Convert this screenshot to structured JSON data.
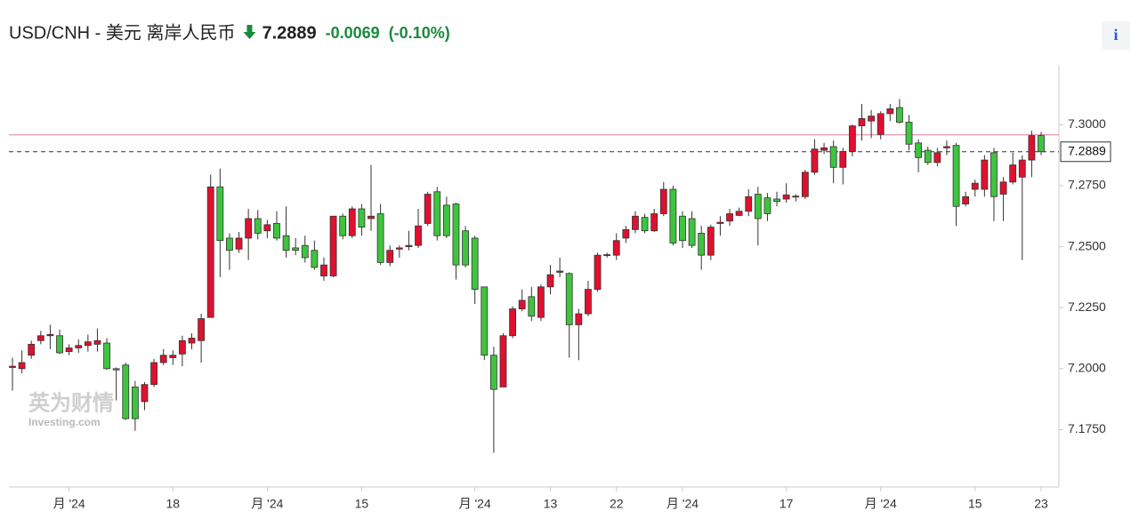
{
  "chart_data": {
    "type": "candlestick",
    "title": "USD/CNH - 美元 离岸人民币",
    "last_price": 7.2889,
    "change": -0.0069,
    "change_pct": "(-0.10%)",
    "info": "i",
    "watermark": [
      "英为财情",
      "Investing.com"
    ],
    "prev_close": 7.2958,
    "up_color": "#e0102f",
    "down_color": "#3ec43e",
    "grid": false,
    "ylim": [
      7.1515,
      7.3245
    ],
    "yticks": [
      {
        "value": 7.3,
        "label": "7.3000"
      },
      {
        "value": 7.275,
        "label": "7.2750"
      },
      {
        "value": 7.25,
        "label": "7.2500"
      },
      {
        "value": 7.225,
        "label": "7.2250"
      },
      {
        "value": 7.2,
        "label": "7.2000"
      },
      {
        "value": 7.175,
        "label": "7.1750"
      }
    ],
    "categories": [
      null,
      null,
      null,
      null,
      null,
      null,
      "月 '24",
      null,
      null,
      null,
      null,
      null,
      null,
      null,
      null,
      null,
      null,
      "18",
      null,
      null,
      null,
      null,
      null,
      null,
      null,
      null,
      null,
      "月 '24",
      null,
      null,
      null,
      null,
      null,
      null,
      null,
      null,
      null,
      "15",
      null,
      null,
      null,
      null,
      null,
      null,
      null,
      null,
      null,
      null,
      null,
      "月 '24",
      null,
      null,
      null,
      null,
      null,
      null,
      null,
      "13",
      null,
      null,
      null,
      null,
      null,
      null,
      "22",
      null,
      null,
      null,
      null,
      null,
      null,
      "月 '24",
      null,
      null,
      null,
      null,
      null,
      null,
      null,
      null,
      null,
      null,
      "17",
      null,
      null,
      null,
      null,
      null,
      null,
      null,
      null,
      null,
      "月 '24",
      null,
      null,
      null,
      null,
      null,
      null,
      null,
      null,
      null,
      "15",
      null,
      null,
      null,
      null,
      null,
      null,
      "23"
    ],
    "open": [
      7.2005,
      7.2,
      7.2055,
      7.2115,
      7.2135,
      7.2135,
      7.207,
      7.2085,
      7.2095,
      7.21,
      7.2105,
      7.2,
      7.2015,
      7.1925,
      7.1865,
      7.1935,
      7.2025,
      7.2045,
      7.206,
      7.2105,
      7.2115,
      7.221,
      7.2745,
      7.2535,
      7.249,
      7.2535,
      7.2615,
      7.2565,
      7.2595,
      7.2545,
      7.2495,
      7.2505,
      7.2485,
      7.238,
      7.238,
      7.2625,
      7.2545,
      7.2655,
      7.2615,
      7.2635,
      7.2435,
      7.249,
      7.25,
      7.2505,
      7.2595,
      7.2725,
      7.267,
      7.2675,
      7.2565,
      7.2535,
      7.2335,
      7.2055,
      7.1925,
      7.2135,
      7.2245,
      7.2295,
      7.221,
      7.2335,
      7.2395,
      7.239,
      7.218,
      7.2225,
      7.2325,
      7.2465,
      7.2465,
      7.2535,
      7.257,
      7.262,
      7.2565,
      7.2635,
      7.2735,
      7.2625,
      7.2615,
      7.2555,
      7.2465,
      7.2595,
      7.2605,
      7.2628,
      7.2645,
      7.2715,
      7.27,
      7.2695,
      7.2695,
      7.2705,
      7.2705,
      7.2805,
      7.2895,
      7.291,
      7.2825,
      7.289,
      7.2995,
      7.3015,
      7.296,
      7.3045,
      7.307,
      7.301,
      7.2925,
      7.2895,
      7.2845,
      7.2905,
      7.2915,
      7.2675,
      7.2735,
      7.2735,
      7.2885,
      7.2715,
      7.2765,
      7.2785,
      7.2855,
      7.2955
    ],
    "high": [
      7.2045,
      7.2075,
      7.2115,
      7.2155,
      7.218,
      7.216,
      7.21,
      7.212,
      7.214,
      7.2165,
      7.2125,
      7.2005,
      7.2025,
      7.195,
      7.1945,
      7.204,
      7.208,
      7.2075,
      7.2135,
      7.2145,
      7.2225,
      7.2795,
      7.282,
      7.2555,
      7.256,
      7.2655,
      7.265,
      7.261,
      7.2645,
      7.2665,
      7.2535,
      7.2545,
      7.2525,
      7.2455,
      7.2625,
      7.2635,
      7.2665,
      7.2675,
      7.2835,
      7.2675,
      7.2505,
      7.2505,
      7.2565,
      7.2655,
      7.2725,
      7.2745,
      7.2705,
      7.268,
      7.2585,
      7.2545,
      7.2335,
      7.209,
      7.2145,
      7.2255,
      7.2325,
      7.2335,
      7.2345,
      7.2425,
      7.2455,
      7.2395,
      7.2245,
      7.236,
      7.2475,
      7.2475,
      7.2555,
      7.2585,
      7.2645,
      7.2635,
      7.2655,
      7.2765,
      7.275,
      7.2645,
      7.2645,
      7.2585,
      7.259,
      7.2625,
      7.2655,
      7.266,
      7.2735,
      7.2745,
      7.272,
      7.2725,
      7.276,
      7.2715,
      7.2815,
      7.294,
      7.2925,
      7.2935,
      7.2905,
      7.3,
      7.3085,
      7.306,
      7.3055,
      7.3085,
      7.3105,
      7.304,
      7.294,
      7.291,
      7.2905,
      7.2935,
      7.2925,
      7.2725,
      7.2775,
      7.2875,
      7.2905,
      7.2785,
      7.2885,
      7.2875,
      7.2975,
      7.297
    ],
    "low": [
      7.191,
      7.198,
      7.204,
      7.21,
      7.208,
      7.206,
      7.2055,
      7.2065,
      7.207,
      7.207,
      7.1995,
      7.187,
      7.179,
      7.1745,
      7.183,
      7.1925,
      7.2015,
      7.2015,
      7.201,
      7.208,
      7.2025,
      7.221,
      7.2375,
      7.2405,
      7.2475,
      7.2445,
      7.253,
      7.2535,
      7.2525,
      7.2455,
      7.2465,
      7.2435,
      7.2405,
      7.236,
      7.2375,
      7.253,
      7.2535,
      7.2545,
      7.2565,
      7.2425,
      7.242,
      7.2455,
      7.2485,
      7.2495,
      7.2585,
      7.2525,
      7.2535,
      7.2365,
      7.2415,
      7.2265,
      7.2035,
      7.1655,
      7.1925,
      7.2125,
      7.2235,
      7.2195,
      7.2195,
      7.2305,
      7.2375,
      7.2045,
      7.2035,
      7.2215,
      7.2315,
      7.2455,
      7.2445,
      7.2515,
      7.2555,
      7.2555,
      7.256,
      7.2625,
      7.2505,
      7.2495,
      7.2495,
      7.2405,
      7.2445,
      7.2545,
      7.2585,
      7.2625,
      7.2625,
      7.2505,
      7.2605,
      7.2665,
      7.268,
      7.2685,
      7.2695,
      7.2795,
      7.288,
      7.276,
      7.2755,
      7.287,
      7.2935,
      7.2945,
      7.294,
      7.3015,
      7.3005,
      7.2895,
      7.2805,
      7.2835,
      7.283,
      7.2875,
      7.2585,
      7.2665,
      7.2705,
      7.2705,
      7.2605,
      7.2605,
      7.2755,
      7.2445,
      7.2785,
      7.2875
    ],
    "close": [
      7.201,
      7.2025,
      7.21,
      7.2135,
      7.214,
      7.2065,
      7.2085,
      7.2095,
      7.211,
      7.2115,
      7.2,
      7.1995,
      7.1795,
      7.1795,
      7.1935,
      7.2025,
      7.2055,
      7.2055,
      7.2115,
      7.2125,
      7.2205,
      7.2745,
      7.2525,
      7.2485,
      7.2535,
      7.2615,
      7.2555,
      7.259,
      7.2535,
      7.2485,
      7.2485,
      7.2455,
      7.2415,
      7.2425,
      7.2625,
      7.2545,
      7.2655,
      7.258,
      7.2625,
      7.2435,
      7.2485,
      7.2495,
      7.2505,
      7.2585,
      7.2715,
      7.2545,
      7.2545,
      7.2425,
      7.2425,
      7.2325,
      7.2055,
      7.1915,
      7.2135,
      7.2245,
      7.228,
      7.2215,
      7.2335,
      7.2385,
      7.24,
      7.218,
      7.2225,
      7.2325,
      7.2465,
      7.2467,
      7.2525,
      7.257,
      7.2625,
      7.2565,
      7.2635,
      7.2735,
      7.2515,
      7.2525,
      7.2505,
      7.2465,
      7.258,
      7.26,
      7.2635,
      7.2645,
      7.2705,
      7.2615,
      7.2635,
      7.2685,
      7.2712,
      7.2707,
      7.2805,
      7.29,
      7.2905,
      7.2825,
      7.289,
      7.2995,
      7.3025,
      7.3035,
      7.3045,
      7.3065,
      7.301,
      7.292,
      7.2865,
      7.2845,
      7.2885,
      7.291,
      7.2665,
      7.2705,
      7.276,
      7.2855,
      7.2705,
      7.2765,
      7.2835,
      7.2855,
      7.2955,
      7.2889
    ]
  }
}
